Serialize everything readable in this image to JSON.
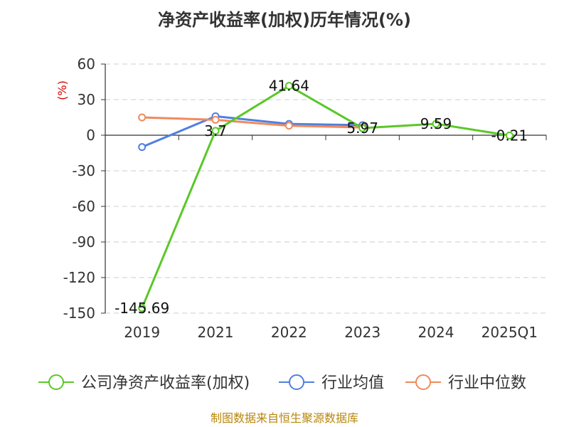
{
  "source_note": "制图数据来自恒生聚源数据库",
  "colors": {
    "roe": "#5ac828",
    "industry_avg": "#4f7fe0",
    "industry_median": "#f08a5d",
    "grid": "#cccccc",
    "axis": "#333333",
    "unit": "#d40000",
    "source": "#b8860b"
  },
  "chart_data": {
    "type": "line",
    "title": "净资产收益率(加权)历年情况(%)",
    "ylabel": "(%)",
    "xlabel": "",
    "categories": [
      "2019",
      "2021",
      "2022",
      "2023",
      "2024",
      "2025Q1"
    ],
    "ylim": [
      -150,
      60
    ],
    "yticks": [
      60,
      30,
      0,
      -30,
      -60,
      -90,
      -120,
      -150
    ],
    "grid": true,
    "legend_position": "bottom",
    "series": [
      {
        "name": "公司净资产收益率(加权)",
        "color": "#5ac828",
        "values": [
          -145.69,
          3.7,
          41.64,
          5.97,
          9.59,
          -0.21
        ],
        "labels": [
          "-145.69",
          "3.7",
          "41.64",
          "5.97",
          "9.59",
          "-0.21"
        ]
      },
      {
        "name": "行业均值",
        "color": "#4f7fe0",
        "values": [
          -10,
          16,
          9.5,
          8.5,
          null,
          null
        ]
      },
      {
        "name": "行业中位数",
        "color": "#f08a5d",
        "values": [
          15,
          13,
          8,
          6.5,
          null,
          null
        ]
      }
    ]
  }
}
